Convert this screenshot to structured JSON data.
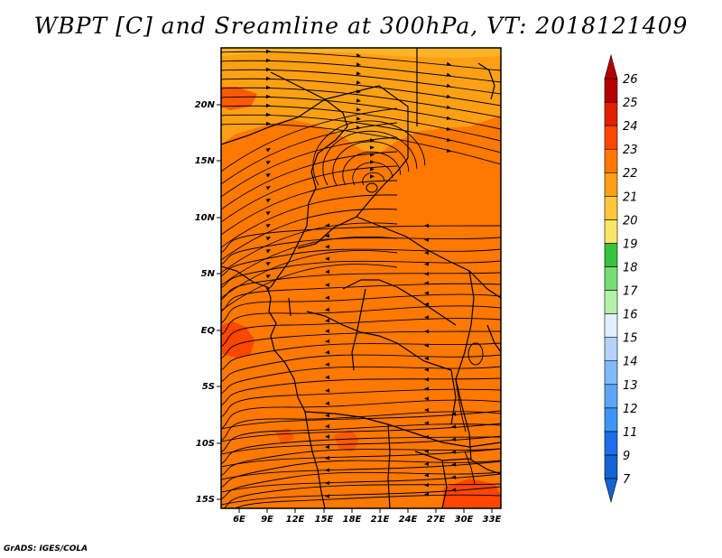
{
  "title": "WBPT [C] and Sreamline at 300hPa, VT: 2018121409",
  "credit": "GrADS: IGES/COLA",
  "map": {
    "lat_labels": [
      "20N",
      "15N",
      "10N",
      "5N",
      "EQ",
      "5S",
      "10S",
      "15S"
    ],
    "lon_labels": [
      "6E",
      "9E",
      "12E",
      "15E",
      "18E",
      "21E",
      "24E",
      "27E",
      "30E",
      "33E"
    ]
  },
  "colorbar": {
    "levels": [
      "7",
      "9",
      "11",
      "12",
      "13",
      "14",
      "15",
      "16",
      "17",
      "18",
      "19",
      "20",
      "21",
      "22",
      "23",
      "24",
      "25",
      "26"
    ],
    "colors": [
      "#1463d2",
      "#1e6eeb",
      "#3c96f5",
      "#5fa5f5",
      "#82b9f9",
      "#b4d2fa",
      "#e1f0ff",
      "#b4f0aa",
      "#78dc78",
      "#37c33c",
      "#fae664",
      "#ffc83c",
      "#ffa014",
      "#ff7800",
      "#ff4600",
      "#e11e00",
      "#b40000"
    ]
  },
  "legend": {
    "field_colors": {
      "warm": "#ff7800",
      "warmer": "#ff4600",
      "cool": "#ffa014",
      "cooler": "#ffc83c"
    }
  }
}
